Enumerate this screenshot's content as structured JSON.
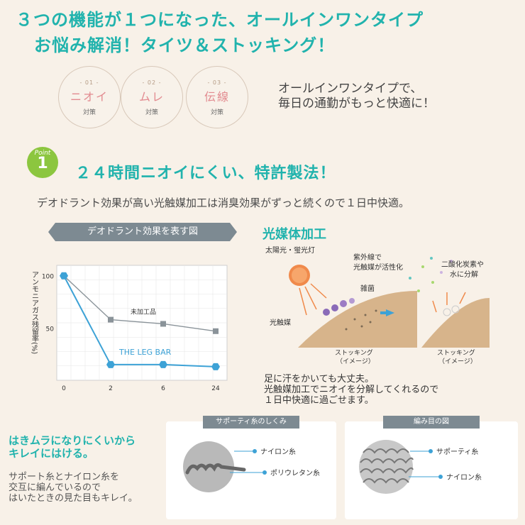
{
  "header": {
    "line1": "３つの機能が１つになった、オールインワンタイプ",
    "line2": "お悩み解消！タイツ＆ストッキング！"
  },
  "features": [
    {
      "num": "- 01 -",
      "label": "ニオイ",
      "sub": "対策"
    },
    {
      "num": "- 02 -",
      "label": "ムレ",
      "sub": "対策"
    },
    {
      "num": "- 03 -",
      "label": "伝線",
      "sub": "対策"
    }
  ],
  "catch": {
    "line1": "オールインワンタイプで、",
    "line2": "毎日の通勤がもっと快適に！"
  },
  "point": {
    "badge_word": "Point",
    "badge_num": "1",
    "title": "２４時間ニオイにくい、特許製法！",
    "desc": "デオドラント効果が高い光触媒加工は消臭効果がずっと続くので１日中快適。"
  },
  "chart_banner": "デオドラント効果を表す図",
  "chart_data": {
    "type": "line",
    "ylabel": "アンモニアガス残留率(%)",
    "x": [
      0,
      2,
      6,
      24
    ],
    "xticks": [
      "0",
      "2",
      "6",
      "24"
    ],
    "yticks": [
      "100",
      "50"
    ],
    "ylim": [
      0,
      110
    ],
    "series": [
      {
        "name": "未加工品",
        "values": [
          100,
          58,
          54,
          47
        ],
        "color": "#8a9399"
      },
      {
        "name": "THE LEG BAR",
        "values": [
          100,
          15,
          15,
          13
        ],
        "color": "#3da2d6"
      }
    ]
  },
  "photocatalyst": {
    "title": "光媒体加工",
    "light_label": "太陽光・蛍光灯",
    "uv_label_1": "紫外線で",
    "uv_label_2": "光触媒が活性化",
    "co2_label_1": "二酸化炭素や",
    "co2_label_2": "水に分解",
    "bacteria_label": "雑菌",
    "catalyst_label": "光触媒",
    "stocking_label": "ストッキング",
    "image_label": "（イメージ）",
    "note1": "足に汗をかいても大丈夫。",
    "note2": "光触媒加工でニオイを分解してくれるので",
    "note3": "１日中快適に過ごせます。"
  },
  "lower": {
    "heading1": "はきムラになりにくいから",
    "heading2": "キレイにはける。",
    "p1": "サポート糸とナイロン糸を",
    "p2": "交互に編んでいるので",
    "p3": "はいたときの見た目もキレイ。"
  },
  "card1": {
    "tab": "サポーティ糸のしくみ",
    "label1": "ナイロン糸",
    "label2": "ポリウレタン糸"
  },
  "card2": {
    "tab": "編み目の図",
    "label1": "サポーティ糸",
    "label2": "ナイロン糸"
  }
}
